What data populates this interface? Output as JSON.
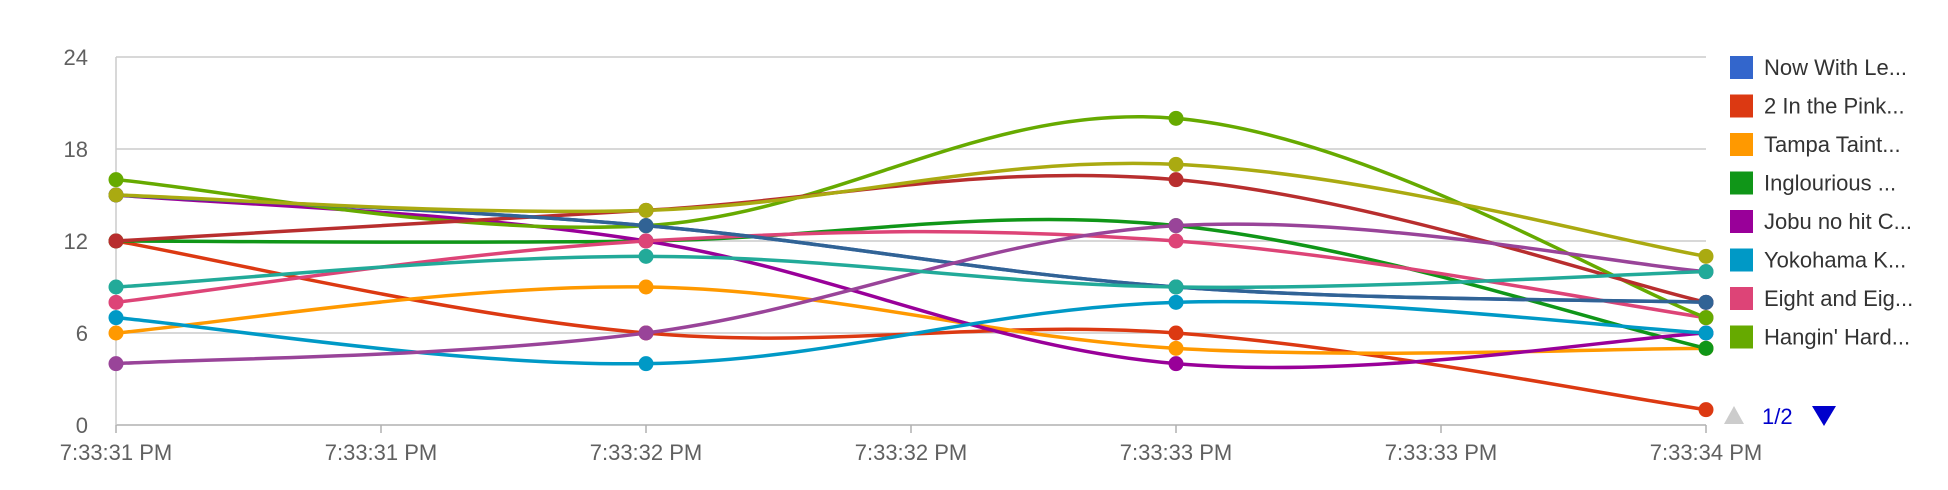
{
  "chart_data": {
    "type": "line",
    "x": [
      "7:33:31 PM",
      "7:33:32 PM",
      "7:33:33 PM",
      "7:33:34 PM"
    ],
    "x_tick_labels": [
      "7:33:31 PM",
      "7:33:31 PM",
      "7:33:32 PM",
      "7:33:32 PM",
      "7:33:33 PM",
      "7:33:33 PM",
      "7:33:34 PM"
    ],
    "y_ticks": [
      0,
      6,
      12,
      18,
      24
    ],
    "ylim": [
      0,
      24
    ],
    "grid": "horizontal",
    "legend_placement": "right",
    "series": [
      {
        "name": "Now With Le...",
        "color": "#3366cc",
        "values": [
          15,
          13,
          9,
          8
        ]
      },
      {
        "name": "2 In the Pink...",
        "color": "#dc3912",
        "values": [
          12,
          6,
          6,
          1
        ]
      },
      {
        "name": "Tampa Taint...",
        "color": "#ff9900",
        "values": [
          6,
          9,
          5,
          5
        ]
      },
      {
        "name": "Inglourious ...",
        "color": "#109618",
        "values": [
          12,
          12,
          13,
          5
        ]
      },
      {
        "name": "Jobu no hit C...",
        "color": "#990099",
        "values": [
          15,
          12,
          4,
          6
        ]
      },
      {
        "name": "Yokohama K...",
        "color": "#0099c6",
        "values": [
          7,
          4,
          8,
          6
        ]
      },
      {
        "name": "Eight and Eig...",
        "color": "#dd4477",
        "values": [
          8,
          12,
          12,
          7
        ]
      },
      {
        "name": "Hangin' Hard...",
        "color": "#66aa00",
        "values": [
          16,
          13,
          20,
          7
        ]
      },
      {
        "name": "",
        "color": "#b82e2e",
        "values": [
          12,
          14,
          16,
          8
        ]
      },
      {
        "name": "",
        "color": "#316395",
        "values": [
          15,
          13,
          9,
          8
        ]
      },
      {
        "name": "",
        "color": "#994499",
        "values": [
          4,
          6,
          13,
          10
        ]
      },
      {
        "name": "",
        "color": "#22aa99",
        "values": [
          9,
          11,
          9,
          10
        ]
      },
      {
        "name": "",
        "color": "#aaaa11",
        "values": [
          15,
          14,
          17,
          11
        ]
      }
    ],
    "legend_page": "1/2"
  }
}
